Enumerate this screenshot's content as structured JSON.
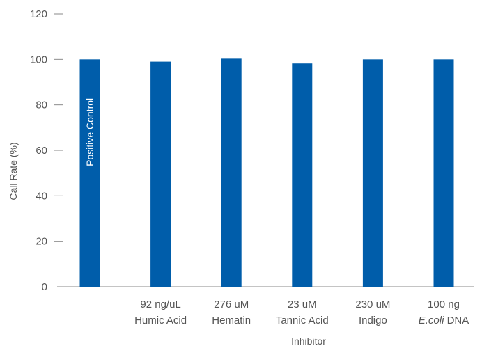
{
  "chart_data": {
    "type": "bar",
    "xlabel": "Inhibitor",
    "ylabel": "Call Rate (%)",
    "ylim": [
      0,
      120
    ],
    "yticks": [
      0,
      20,
      40,
      60,
      80,
      100,
      120
    ],
    "bar_color": "#005DAA",
    "categories": [
      {
        "line1": "",
        "line2": "",
        "inside_label": "Positive Control"
      },
      {
        "line1": "92 ng/uL",
        "line2": "Humic Acid"
      },
      {
        "line1": "276 uM",
        "line2": "Hematin"
      },
      {
        "line1": "23 uM",
        "line2": "Tannic Acid"
      },
      {
        "line1": "230 uM",
        "line2": "Indigo"
      },
      {
        "line1": "100 ng",
        "line2_italic": "E.coli",
        "line2": " DNA"
      }
    ],
    "values": [
      100,
      99,
      100.3,
      98.2,
      100,
      100
    ]
  }
}
